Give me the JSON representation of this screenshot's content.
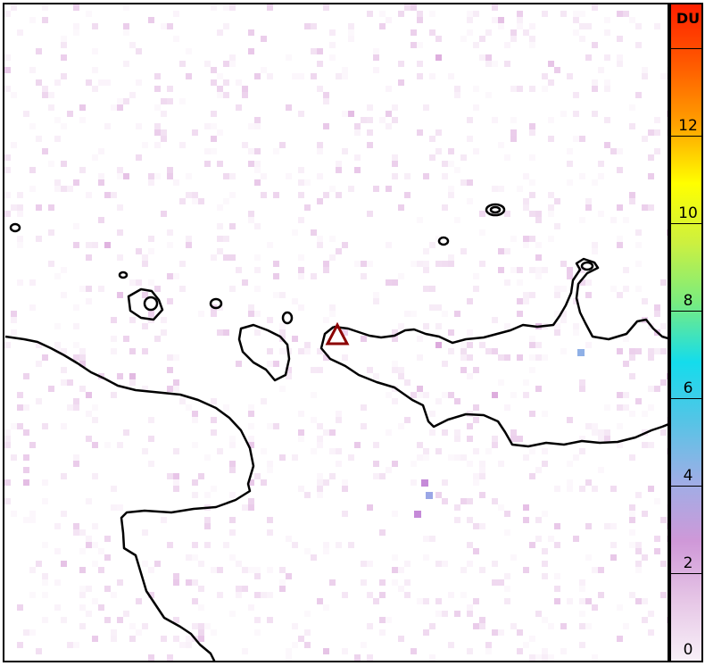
{
  "colorbar": {
    "unit": "DU",
    "min": 0,
    "max": 14,
    "ticks": [
      {
        "value": 0,
        "label": "0"
      },
      {
        "value": 2,
        "label": "2"
      },
      {
        "value": 4,
        "label": "4"
      },
      {
        "value": 6,
        "label": "6"
      },
      {
        "value": 8,
        "label": "8"
      },
      {
        "value": 10,
        "label": "10"
      },
      {
        "value": 12,
        "label": "12"
      },
      {
        "value": 14,
        "label": ""
      }
    ],
    "colors": [
      "#f8f0f8",
      "#e6c6e6",
      "#cf98d8",
      "#9eaee6",
      "#56c4e6",
      "#14dcec",
      "#78ec80",
      "#ccf040",
      "#ffff00",
      "#ffa000",
      "#ff5a00",
      "#ff2000"
    ]
  },
  "map": {
    "volcano_marker": "triangle-icon",
    "volcano_color": "#8b0000",
    "coastline_color": "#000000"
  }
}
